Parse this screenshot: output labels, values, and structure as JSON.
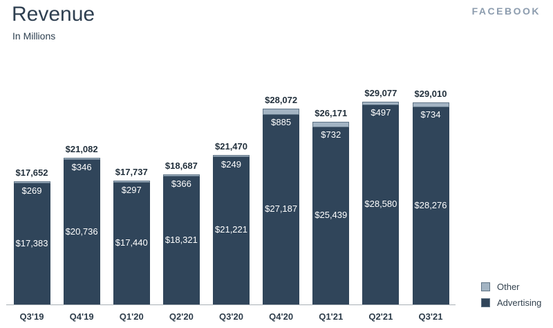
{
  "header": {
    "title": "Revenue",
    "subtitle": "In Millions",
    "brand": "FACEBOOK"
  },
  "chart_data": {
    "type": "bar",
    "variant": "stacked",
    "title": "Revenue",
    "subtitle": "In Millions",
    "unit": "USD millions",
    "grid": false,
    "legend_position": "bottom-right",
    "ylim": [
      0,
      29077
    ],
    "categories": [
      "Q3'19",
      "Q4'19",
      "Q1'20",
      "Q2'20",
      "Q3'20",
      "Q4'20",
      "Q1'21",
      "Q2'21",
      "Q3'21"
    ],
    "series": [
      {
        "name": "Advertising",
        "color": "#30455a",
        "values": [
          17383,
          20736,
          17440,
          18321,
          21221,
          27187,
          25439,
          28580,
          28276
        ],
        "labels": [
          "$17,383",
          "$20,736",
          "$17,440",
          "$18,321",
          "$21,221",
          "$27,187",
          "$25,439",
          "$28,580",
          "$28,276"
        ]
      },
      {
        "name": "Other",
        "color": "#a3b4c3",
        "values": [
          269,
          346,
          297,
          366,
          249,
          885,
          732,
          497,
          734
        ],
        "labels": [
          "$269",
          "$346",
          "$297",
          "$366",
          "$249",
          "$885",
          "$732",
          "$497",
          "$734"
        ]
      }
    ],
    "totals": [
      17652,
      21082,
      17737,
      18687,
      21470,
      28072,
      26171,
      29077,
      29010
    ],
    "total_labels": [
      "$17,652",
      "$21,082",
      "$17,737",
      "$18,687",
      "$21,470",
      "$28,072",
      "$26,171",
      "$29,077",
      "$29,010"
    ],
    "legend": [
      {
        "label": "Other",
        "color": "#a3b4c3"
      },
      {
        "label": "Advertising",
        "color": "#30455a"
      }
    ]
  }
}
